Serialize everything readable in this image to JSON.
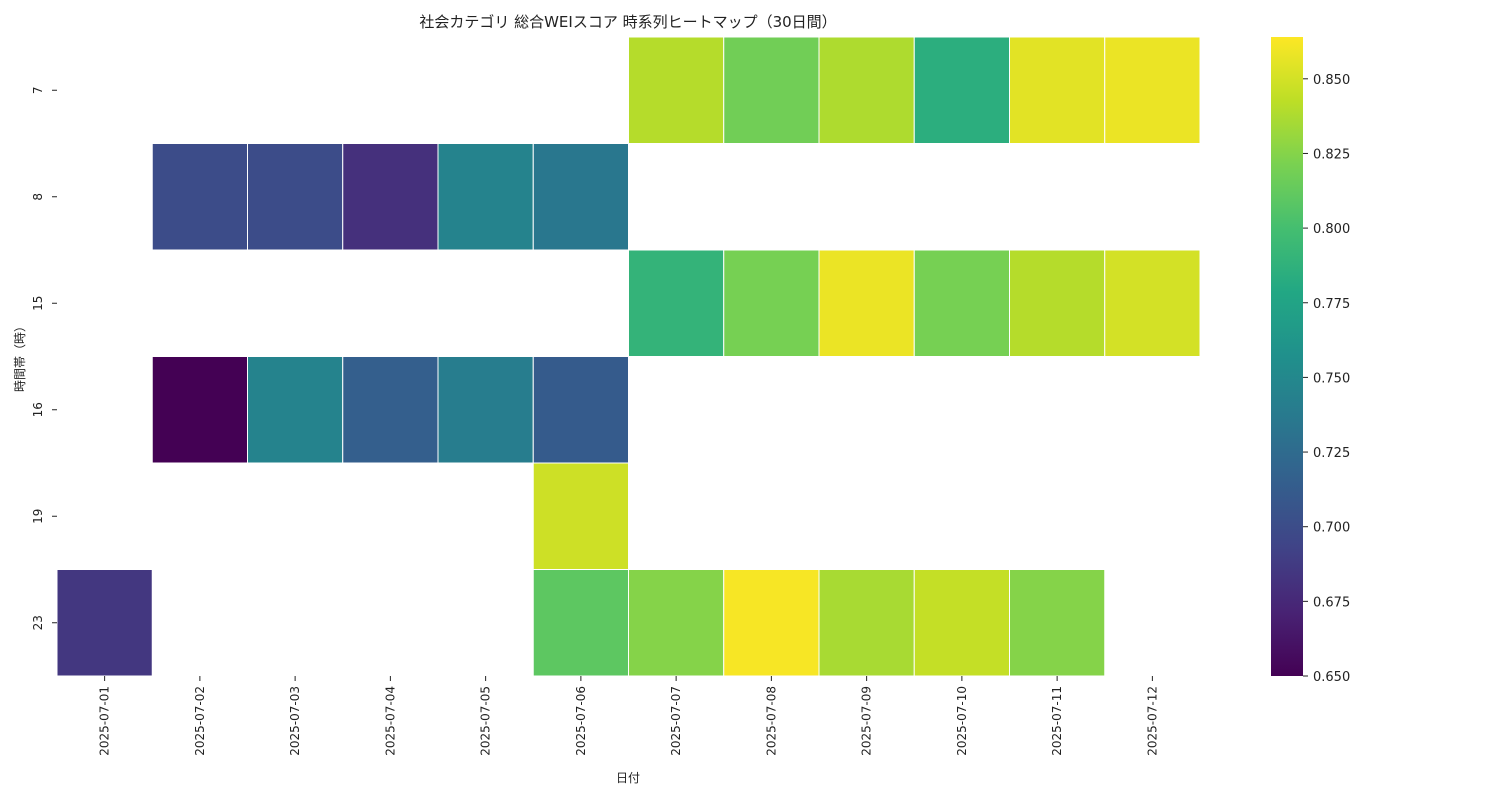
{
  "chart_data": {
    "type": "heatmap",
    "title": "社会カテゴリ 総合WEIスコア 時系列ヒートマップ（30日間）",
    "xlabel": "日付",
    "ylabel": "時間帯（時）",
    "x": [
      "2025-07-01",
      "2025-07-02",
      "2025-07-03",
      "2025-07-04",
      "2025-07-05",
      "2025-07-06",
      "2025-07-07",
      "2025-07-08",
      "2025-07-09",
      "2025-07-10",
      "2025-07-11",
      "2025-07-12"
    ],
    "y": [
      "7",
      "8",
      "15",
      "16",
      "19",
      "23"
    ],
    "values": [
      [
        null,
        null,
        null,
        null,
        null,
        null,
        0.84,
        0.818,
        0.838,
        0.785,
        0.855,
        0.858
      ],
      [
        null,
        0.7,
        0.7,
        0.68,
        0.745,
        0.735,
        null,
        null,
        null,
        null,
        null,
        null
      ],
      [
        null,
        null,
        null,
        null,
        null,
        null,
        0.79,
        0.82,
        0.858,
        0.82,
        0.84,
        0.85
      ],
      [
        null,
        0.65,
        0.745,
        0.715,
        0.74,
        0.712,
        null,
        null,
        null,
        null,
        null,
        null
      ],
      [
        null,
        null,
        null,
        null,
        null,
        0.848,
        null,
        null,
        null,
        null,
        null,
        null
      ],
      [
        0.685,
        null,
        null,
        null,
        null,
        0.81,
        0.825,
        0.862,
        0.836,
        0.845,
        0.825,
        null
      ]
    ],
    "colorbar": {
      "colormap": "viridis",
      "range": [
        0.65,
        0.864
      ],
      "ticks": [
        "0.650",
        "0.675",
        "0.700",
        "0.725",
        "0.750",
        "0.775",
        "0.800",
        "0.825",
        "0.850"
      ]
    }
  }
}
